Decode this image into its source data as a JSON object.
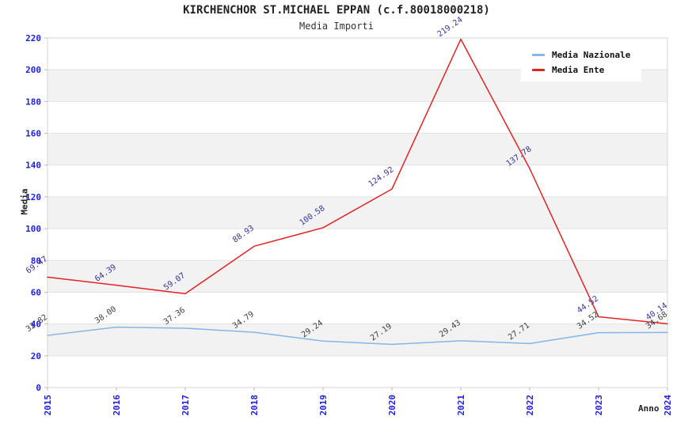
{
  "header": {
    "title": "KIRCHENCHOR ST.MICHAEL EPPAN (c.f.80018000218)",
    "subtitle": "Media Importi"
  },
  "chart_data": {
    "type": "line",
    "title": "KIRCHENCHOR ST.MICHAEL EPPAN (c.f.80018000218)",
    "subtitle": "Media Importi",
    "xlabel": "Anno",
    "ylabel": "Media",
    "ylim": [
      0,
      220
    ],
    "ytick_step": 20,
    "y_ticks": [
      0,
      20,
      40,
      60,
      80,
      100,
      120,
      140,
      160,
      180,
      200,
      220
    ],
    "x": [
      "2015",
      "2016",
      "2017",
      "2018",
      "2019",
      "2020",
      "2021",
      "2022",
      "2023",
      "2024"
    ],
    "grid": "horizontal gridlines with alternating shaded bands",
    "legend_position": "top-right",
    "series": [
      {
        "name": "Media Nazionale",
        "color": "#85b5e6",
        "label_color": "#3d3d3d",
        "values": [
          32.82,
          38.0,
          37.36,
          34.79,
          29.24,
          27.19,
          29.43,
          27.71,
          34.52,
          34.68
        ],
        "point_labels": [
          "32.82",
          "38.00",
          "37.36",
          "34.79",
          "29.24",
          "27.19",
          "29.43",
          "27.71",
          "34.52",
          "34.68"
        ]
      },
      {
        "name": "Media Ente",
        "color": "#e02424",
        "label_color": "#333399",
        "values": [
          69.47,
          64.39,
          59.07,
          88.93,
          100.58,
          124.92,
          219.24,
          137.78,
          44.52,
          40.14
        ],
        "point_labels": [
          "69.47",
          "64.39",
          "59.07",
          "88.93",
          "100.58",
          "124.92",
          "219.24",
          "137.78",
          "44.52",
          "40.14"
        ]
      }
    ]
  },
  "style": {
    "tick_label_color": "#2020dd",
    "band_color": "#f2f2f2",
    "grid_line_color": "#e3e3e3",
    "plot_border_color": "#d4d4d4",
    "tick_mark_color": "#b8b8b8",
    "title_color": "#222222"
  }
}
